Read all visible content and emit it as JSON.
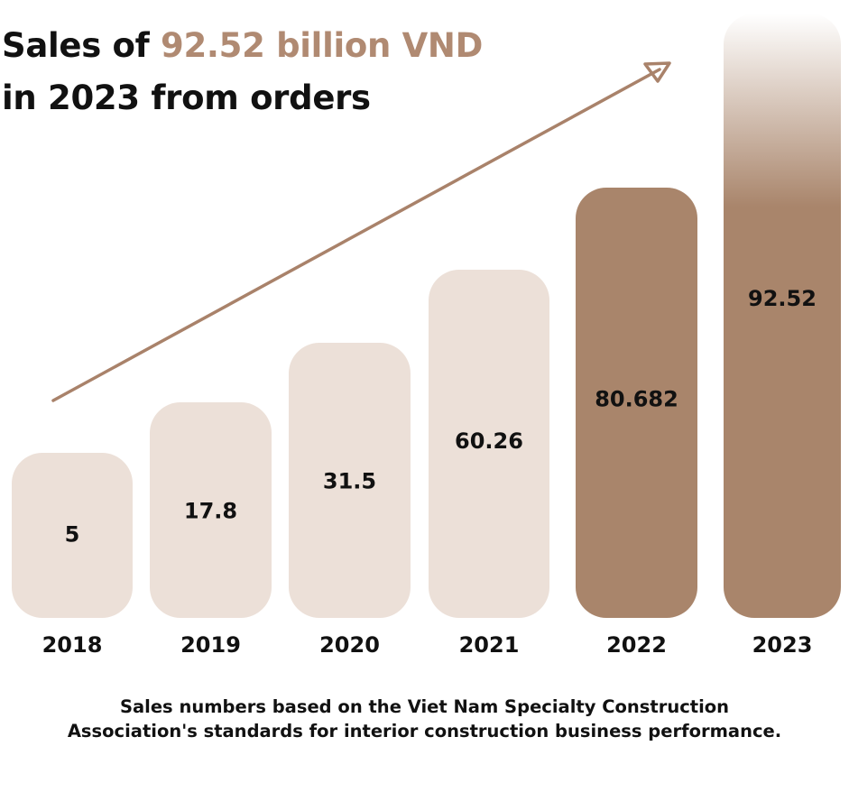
{
  "headline": {
    "prefix": "Sales of ",
    "highlight": "92.52 billion VND",
    "line2": "in 2023 from orders"
  },
  "footnote": {
    "line1": "Sales numbers based on the Viet Nam Specialty Construction",
    "line2": "Association's standards for interior construction business performance."
  },
  "colors": {
    "light_bar": "#ece0d8",
    "dark_bar": "#a9856b",
    "accent_text": "#b08a72",
    "arrow": "#a9826a"
  },
  "chart_data": {
    "type": "bar",
    "categories": [
      "2018",
      "2019",
      "2020",
      "2021",
      "2022",
      "2023"
    ],
    "values": [
      5,
      17.8,
      31.5,
      60.26,
      80.682,
      92.52
    ],
    "value_labels": [
      "5",
      "17.8",
      "31.5",
      "60.26",
      "80.682",
      "92.52"
    ],
    "highlighted": [
      false,
      false,
      false,
      false,
      true,
      true
    ],
    "faded_top": [
      false,
      false,
      false,
      false,
      false,
      true
    ],
    "title": "",
    "xlabel": "",
    "ylabel": "",
    "grid": false,
    "trend_arrow": true
  }
}
